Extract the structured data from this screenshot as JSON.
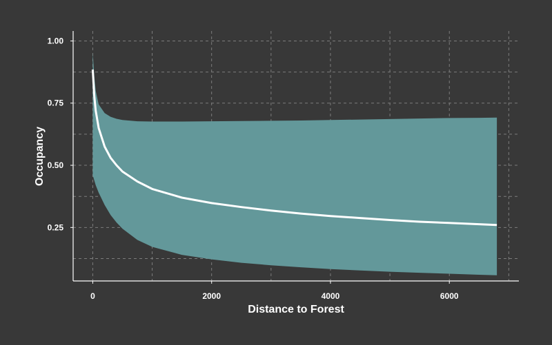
{
  "chart_data": {
    "type": "area",
    "title": "",
    "xlabel": "Distance to Forest",
    "ylabel": "Occupancy",
    "xlim": [
      -330,
      7170
    ],
    "ylim": [
      0.035,
      1.04
    ],
    "x_ticks": [
      0,
      2000,
      4000,
      6000
    ],
    "x_tick_labels": [
      "0",
      "2000",
      "4000",
      "6000"
    ],
    "y_ticks": [
      0.25,
      0.5,
      0.75,
      1.0
    ],
    "y_tick_labels": [
      "0.25",
      "0.50",
      "0.75",
      "1.00"
    ],
    "grid": true,
    "legend": "none",
    "colors": {
      "background": "#383838",
      "ribbon": "#63989a",
      "line": "#ffffff",
      "grid": "#7d7d7d",
      "axis": "#ffffff"
    },
    "series": [
      {
        "x": [
          0,
          25,
          50,
          100,
          200,
          300,
          400,
          500,
          750,
          1000,
          1500,
          2000,
          2500,
          3000,
          3500,
          4000,
          4500,
          5000,
          5500,
          6000,
          6500,
          6800
        ],
        "values": [
          0.885,
          0.78,
          0.72,
          0.65,
          0.575,
          0.53,
          0.5,
          0.475,
          0.435,
          0.405,
          0.37,
          0.348,
          0.332,
          0.318,
          0.306,
          0.296,
          0.288,
          0.28,
          0.273,
          0.268,
          0.263,
          0.26
        ],
        "lower": [
          0.46,
          0.44,
          0.42,
          0.39,
          0.34,
          0.3,
          0.27,
          0.245,
          0.2,
          0.172,
          0.14,
          0.122,
          0.108,
          0.098,
          0.09,
          0.083,
          0.077,
          0.072,
          0.068,
          0.064,
          0.06,
          0.058
        ],
        "upper": [
          0.955,
          0.86,
          0.8,
          0.745,
          0.71,
          0.695,
          0.687,
          0.682,
          0.677,
          0.676,
          0.676,
          0.677,
          0.678,
          0.679,
          0.68,
          0.682,
          0.684,
          0.686,
          0.688,
          0.69,
          0.691,
          0.692
        ]
      }
    ]
  }
}
